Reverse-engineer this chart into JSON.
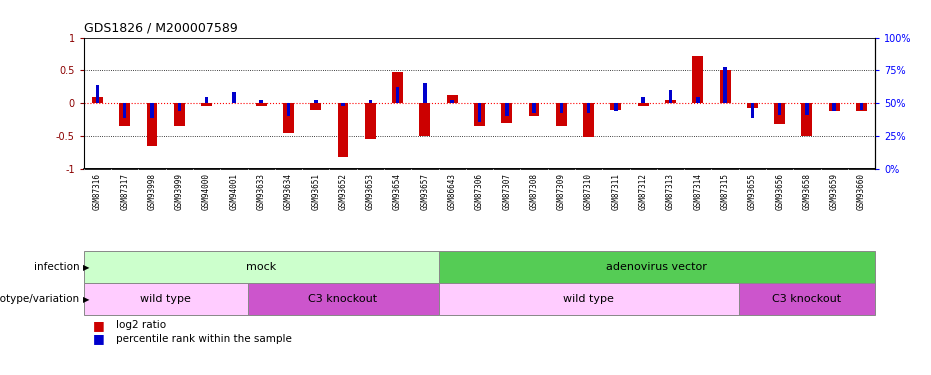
{
  "title": "GDS1826 / M200007589",
  "samples": [
    "GSM87316",
    "GSM87317",
    "GSM93998",
    "GSM93999",
    "GSM94000",
    "GSM94001",
    "GSM93633",
    "GSM93634",
    "GSM93651",
    "GSM93652",
    "GSM93653",
    "GSM93654",
    "GSM93657",
    "GSM86643",
    "GSM87306",
    "GSM87307",
    "GSM87308",
    "GSM87309",
    "GSM87310",
    "GSM87311",
    "GSM87312",
    "GSM87313",
    "GSM87314",
    "GSM87315",
    "GSM93655",
    "GSM93656",
    "GSM93658",
    "GSM93659",
    "GSM93660"
  ],
  "log2_ratio": [
    0.1,
    -0.35,
    -0.65,
    -0.35,
    -0.05,
    0.0,
    -0.05,
    -0.45,
    -0.1,
    -0.82,
    -0.55,
    0.48,
    -0.5,
    0.12,
    -0.35,
    -0.3,
    -0.2,
    -0.35,
    -0.52,
    -0.1,
    -0.05,
    0.05,
    0.72,
    0.5,
    -0.08,
    -0.32,
    -0.5,
    -0.12,
    -0.12
  ],
  "percentile_rank": [
    0.28,
    0.22,
    0.22,
    0.12,
    0.1,
    0.17,
    0.05,
    0.2,
    0.05,
    0.05,
    0.05,
    0.25,
    0.3,
    0.05,
    0.28,
    0.2,
    0.15,
    0.15,
    0.15,
    0.12,
    0.1,
    0.2,
    0.1,
    0.55,
    0.22,
    0.18,
    0.18,
    0.12,
    0.1
  ],
  "percentile_sign": [
    1,
    -1,
    -1,
    -1,
    1,
    1,
    1,
    -1,
    1,
    -1,
    1,
    1,
    1,
    1,
    -1,
    -1,
    -1,
    -1,
    -1,
    -1,
    1,
    1,
    1,
    1,
    -1,
    -1,
    -1,
    -1,
    -1
  ],
  "infection_groups": [
    {
      "label": "mock",
      "start": 0,
      "end": 12,
      "color": "#ccffcc"
    },
    {
      "label": "adenovirus vector",
      "start": 13,
      "end": 28,
      "color": "#55cc55"
    }
  ],
  "genotype_groups": [
    {
      "label": "wild type",
      "start": 0,
      "end": 5,
      "color": "#ffccff"
    },
    {
      "label": "C3 knockout",
      "start": 6,
      "end": 12,
      "color": "#cc55cc"
    },
    {
      "label": "wild type",
      "start": 13,
      "end": 23,
      "color": "#ffccff"
    },
    {
      "label": "C3 knockout",
      "start": 24,
      "end": 28,
      "color": "#cc55cc"
    }
  ],
  "bar_color_red": "#cc0000",
  "bar_color_blue": "#0000cc",
  "ylim": [
    -1.0,
    1.0
  ],
  "yticks_left": [
    -1.0,
    -0.5,
    0.0,
    0.5,
    1.0
  ],
  "ytick_labels_left": [
    "-1",
    "-0.5",
    "0",
    "0.5",
    "1"
  ],
  "yticks_right_pct": [
    0,
    25,
    50,
    75,
    100
  ],
  "background_color": "#ffffff"
}
